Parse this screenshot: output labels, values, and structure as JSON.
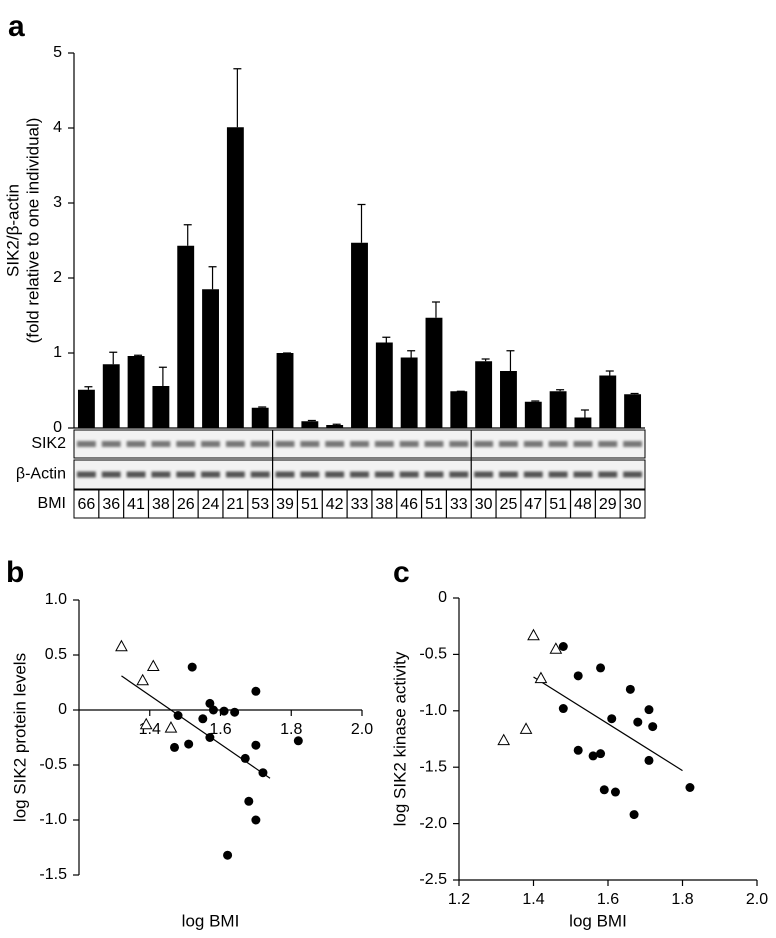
{
  "chart_data": [
    {
      "type": "bar",
      "panel": "a",
      "ylabel": [
        "SIK2/β-actin",
        "(fold relative to one individual)"
      ],
      "categories": [
        "66",
        "36",
        "41",
        "38",
        "26",
        "24",
        "21",
        "53",
        "39",
        "51",
        "42",
        "33",
        "38",
        "46",
        "51",
        "33",
        "30",
        "25",
        "47",
        "51",
        "48",
        "29",
        "30"
      ],
      "category_label": "BMI",
      "row_labels": [
        "SIK2",
        "β-Actin"
      ],
      "values": [
        0.51,
        0.85,
        0.96,
        0.56,
        2.43,
        1.85,
        4.01,
        0.27,
        1.0,
        0.09,
        0.04,
        2.47,
        1.14,
        0.94,
        1.47,
        0.49,
        0.89,
        0.76,
        0.35,
        0.49,
        0.14,
        0.7,
        0.45
      ],
      "errors": [
        0.04,
        0.16,
        0.01,
        0.25,
        0.28,
        0.3,
        0.78,
        0.01,
        0,
        0.01,
        0.01,
        0.51,
        0.07,
        0.09,
        0.21,
        0,
        0.03,
        0.27,
        0.01,
        0.02,
        0.1,
        0.06,
        0.01
      ],
      "color": "#000000",
      "ylim": [
        0,
        5
      ],
      "yticks": [
        0,
        1,
        2,
        3,
        4,
        5
      ]
    },
    {
      "type": "scatter",
      "panel": "b",
      "xlabel": "log BMI",
      "ylabel": "log SIK2 protein levels",
      "series": [
        {
          "marker": "triangle",
          "color": "#000000",
          "x": [
            1.32,
            1.38,
            1.41,
            1.39,
            1.46
          ],
          "values": [
            0.58,
            0.27,
            0.4,
            -0.13,
            -0.16
          ]
        },
        {
          "marker": "circle",
          "color": "#000000",
          "x": [
            1.52,
            1.48,
            1.47,
            1.51,
            1.55,
            1.57,
            1.58,
            1.57,
            1.61,
            1.64,
            1.7,
            1.67,
            1.7,
            1.72,
            1.68,
            1.7,
            1.62,
            1.82
          ],
          "values": [
            0.39,
            -0.05,
            -0.34,
            -0.31,
            -0.08,
            0.06,
            0.0,
            -0.25,
            -0.01,
            -0.02,
            0.17,
            -0.44,
            -0.32,
            -0.57,
            -0.83,
            -1.0,
            -1.32,
            -0.28
          ]
        }
      ],
      "fit": {
        "x": [
          1.32,
          1.74
        ],
        "values": [
          0.31,
          -0.62
        ]
      },
      "x_axis_at": 0,
      "xlim": [
        1.2,
        2.0
      ],
      "xticks": [
        1.4,
        1.6,
        1.8,
        {
          "value": 2,
          "label": "2.0"
        }
      ],
      "ylim": [
        -1.5,
        1.0
      ],
      "yticks": [
        {
          "value": 1,
          "label": "1.0"
        },
        0.5,
        0,
        -0.5,
        {
          "value": -1,
          "label": "-1.0"
        },
        -1.5
      ]
    },
    {
      "type": "scatter",
      "panel": "c",
      "xlabel": "log BMI",
      "ylabel": "log SIK2 kinase activity",
      "series": [
        {
          "marker": "triangle",
          "color": "#000000",
          "x": [
            1.32,
            1.38,
            1.4,
            1.42,
            1.46
          ],
          "values": [
            -1.26,
            -1.16,
            -0.33,
            -0.71,
            -0.45
          ]
        },
        {
          "marker": "circle",
          "color": "#000000",
          "x": [
            1.48,
            1.48,
            1.52,
            1.52,
            1.56,
            1.58,
            1.58,
            1.59,
            1.61,
            1.62,
            1.66,
            1.67,
            1.68,
            1.71,
            1.71,
            1.72,
            1.82
          ],
          "values": [
            -0.43,
            -0.98,
            -0.69,
            -1.35,
            -1.4,
            -1.38,
            -0.62,
            -1.7,
            -1.07,
            -1.72,
            -0.81,
            -1.92,
            -1.1,
            -0.99,
            -1.44,
            -1.14,
            -1.68
          ]
        }
      ],
      "fit": {
        "x": [
          1.4,
          1.8
        ],
        "values": [
          -0.7,
          -1.53
        ]
      },
      "xlim": [
        1.2,
        2.0
      ],
      "xticks": [
        1.2,
        1.4,
        1.6,
        1.8,
        {
          "value": 2,
          "label": "2.0"
        }
      ],
      "ylim": [
        -2.5,
        0
      ],
      "yticks": [
        0,
        -0.5,
        {
          "value": -1,
          "label": "-1.0"
        },
        -1.5,
        {
          "value": -2,
          "label": "-2.0"
        },
        -2.5
      ]
    }
  ]
}
